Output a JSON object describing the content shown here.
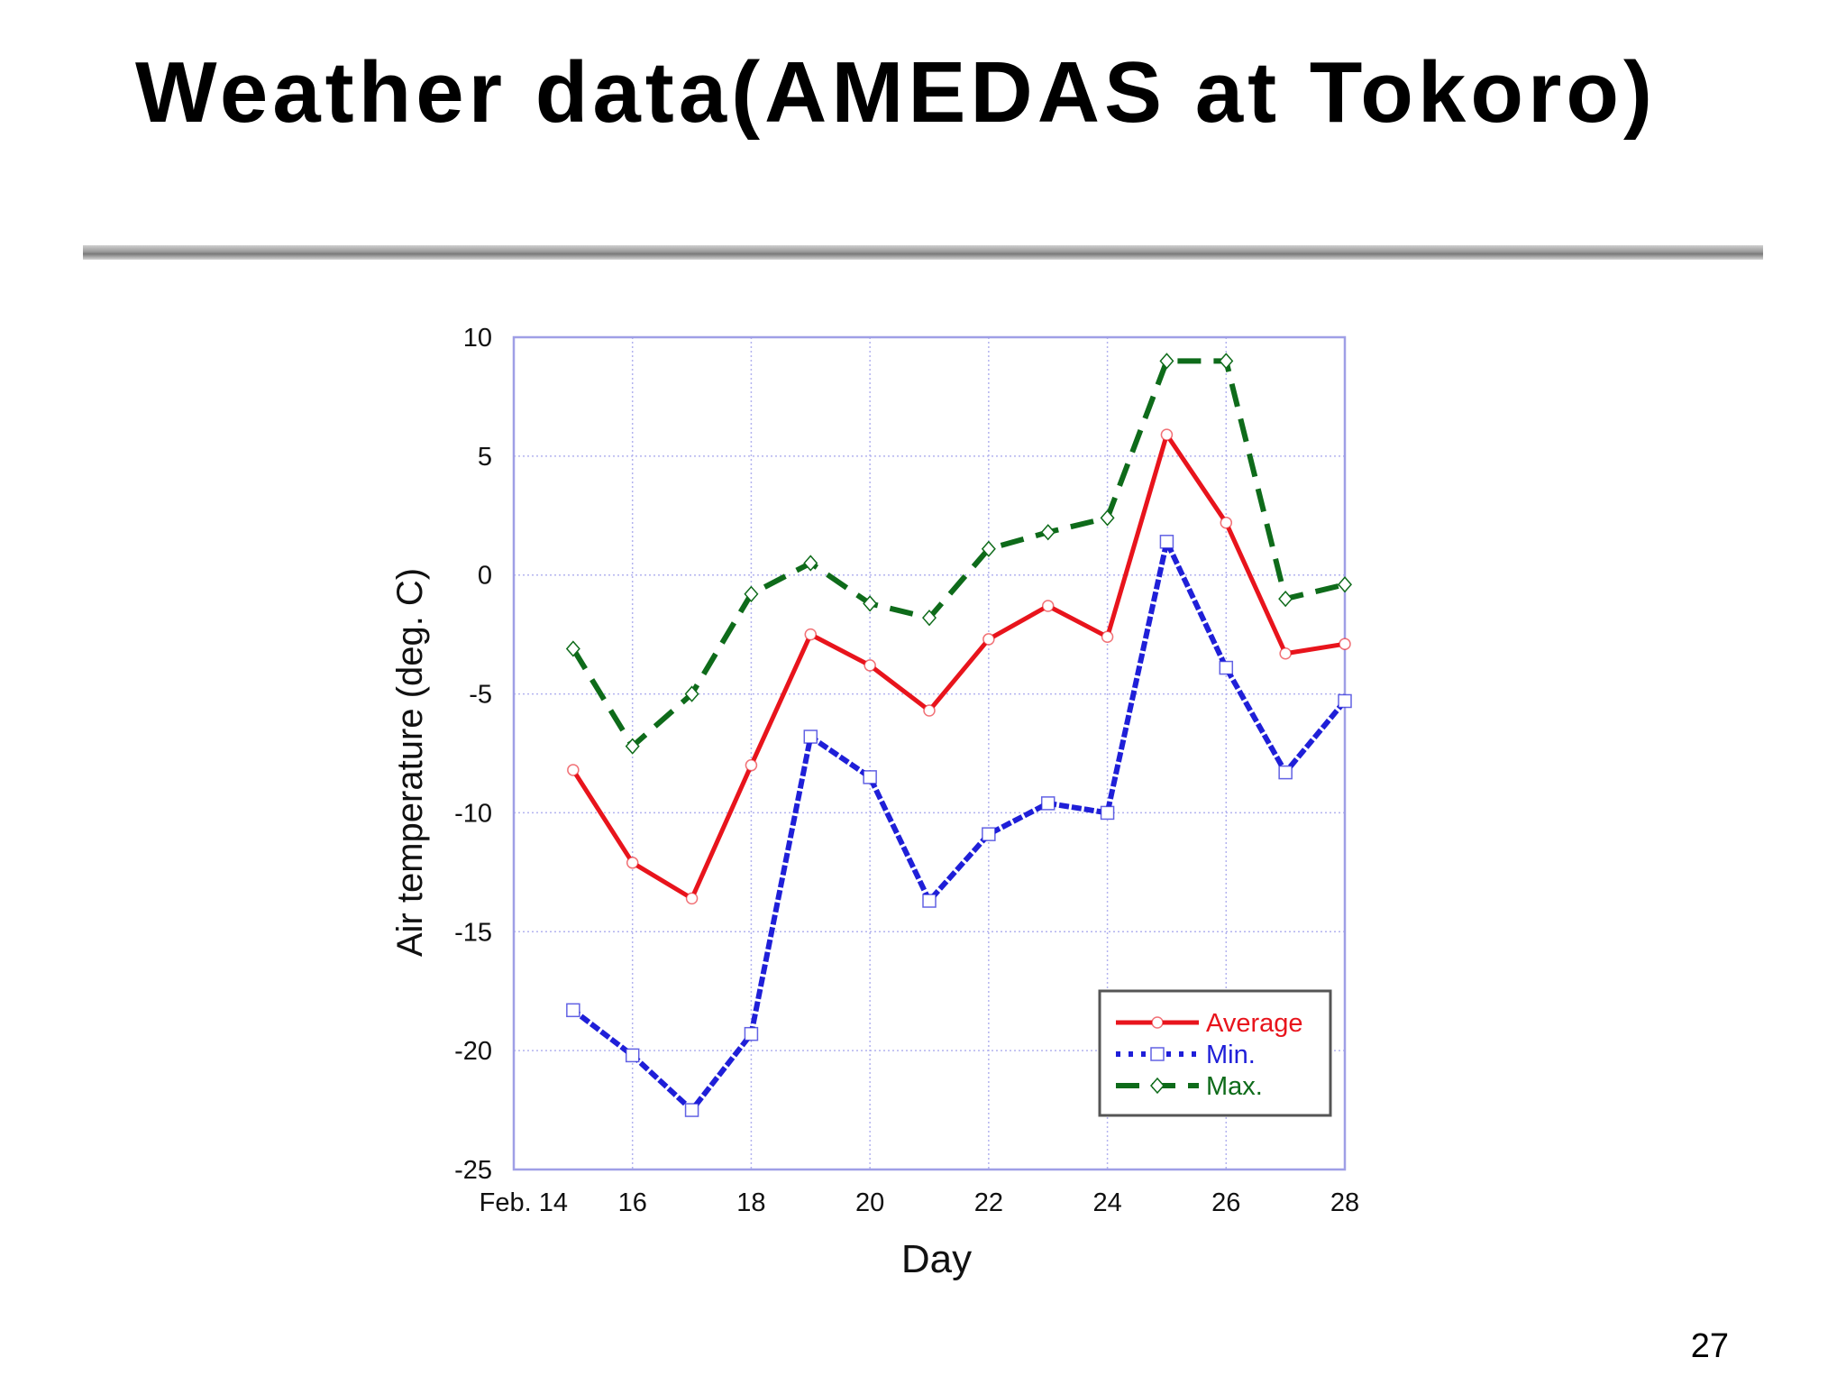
{
  "slide": {
    "title": "Weather data(AMEDAS at Tokoro)",
    "page_number": "27"
  },
  "colors": {
    "average": "#e8141c",
    "min": "#1f1fd8",
    "max": "#0e6b1a",
    "grid": "#b3b3ef",
    "frame": "#9f9fe6"
  },
  "chart_data": {
    "type": "line",
    "title": "",
    "xlabel": "Day",
    "ylabel": "Air temperature (deg. C)",
    "xlim": [
      14,
      28
    ],
    "ylim": [
      -25,
      10
    ],
    "x_ticks": [
      {
        "value": 14,
        "label": "Feb. 14"
      },
      {
        "value": 16,
        "label": "16"
      },
      {
        "value": 18,
        "label": "18"
      },
      {
        "value": 20,
        "label": "20"
      },
      {
        "value": 22,
        "label": "22"
      },
      {
        "value": 24,
        "label": "24"
      },
      {
        "value": 26,
        "label": "26"
      },
      {
        "value": 28,
        "label": "28"
      }
    ],
    "y_ticks": [
      10,
      5,
      0,
      -5,
      -10,
      -15,
      -20,
      -25
    ],
    "grid": true,
    "legend_position": "bottom-right",
    "x": [
      15,
      16,
      17,
      18,
      19,
      20,
      21,
      22,
      23,
      24,
      25,
      26,
      27,
      28
    ],
    "series": [
      {
        "name": "Average",
        "key": "average",
        "line": "solid",
        "marker": "circle",
        "values": [
          -8.2,
          -12.1,
          -13.6,
          -8.0,
          -2.5,
          -3.8,
          -5.7,
          -2.7,
          -1.3,
          -2.6,
          5.9,
          2.2,
          -3.3,
          -2.9
        ]
      },
      {
        "name": "Min.",
        "key": "min",
        "line": "dotted",
        "marker": "square",
        "values": [
          -18.3,
          -20.2,
          -22.5,
          -19.3,
          -6.8,
          -8.5,
          -13.7,
          -10.9,
          -9.6,
          -10.0,
          1.4,
          -3.9,
          -8.3,
          -5.3
        ]
      },
      {
        "name": "Max.",
        "key": "max",
        "line": "dashed",
        "marker": "diamond",
        "values": [
          -3.1,
          -7.2,
          -5.0,
          -0.8,
          0.5,
          -1.2,
          -1.8,
          1.1,
          1.8,
          2.4,
          9.0,
          9.0,
          -1.0,
          -0.4
        ]
      }
    ]
  }
}
